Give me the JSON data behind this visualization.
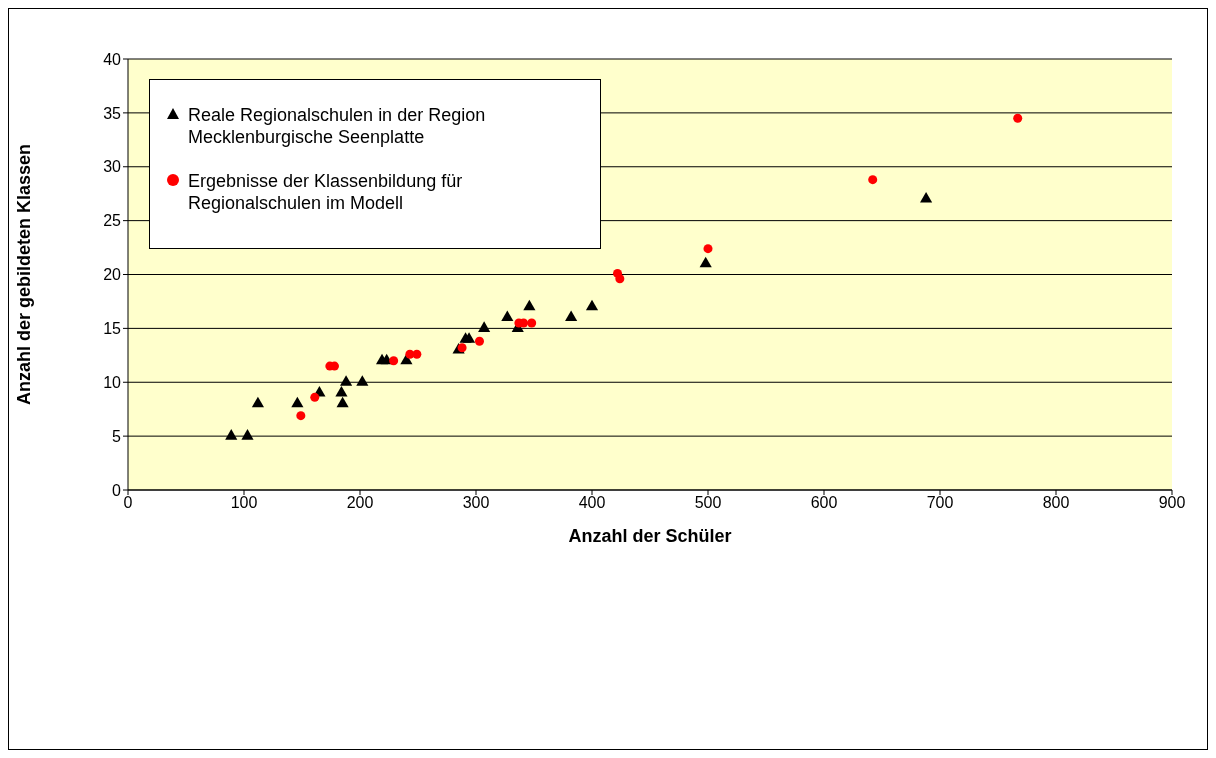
{
  "chart_data": {
    "type": "scatter",
    "xlabel": "Anzahl der Schüler",
    "ylabel": "Anzahl der gebildeten Klassen",
    "xlim": [
      0,
      900
    ],
    "xticks": [
      0,
      100,
      200,
      300,
      400,
      500,
      600,
      700,
      800,
      900
    ],
    "ylim": [
      0,
      40
    ],
    "yticks": [
      0,
      5,
      10,
      15,
      20,
      25,
      30,
      35,
      40
    ],
    "grid": "y",
    "legend": "top left",
    "series": [
      {
        "name": "Reale Regionalschulen in der Region Mecklenburgische Seenplatte",
        "color": "#000000",
        "marker": "triangle",
        "x": [
          89,
          103,
          112,
          146,
          165,
          184,
          185,
          188,
          202,
          219,
          223,
          240,
          285,
          291,
          294,
          307,
          327,
          336,
          346,
          382,
          400,
          498,
          688
        ],
        "values": [
          5,
          5,
          8,
          8,
          9,
          9,
          8,
          10,
          10,
          12,
          12,
          12,
          13,
          14,
          14,
          15,
          16,
          15,
          17,
          16,
          17,
          21,
          27
        ]
      },
      {
        "name": "Ergebnisse der Klassenbildung für Regionalschulen im Modell",
        "color": "#ff0000",
        "marker": "circle",
        "x": [
          149,
          161,
          174,
          178,
          229,
          243,
          249,
          288,
          303,
          337,
          341,
          348,
          422,
          424,
          500,
          642,
          767
        ],
        "values": [
          6.9,
          8.6,
          11.5,
          11.5,
          12.0,
          12.6,
          12.6,
          13.2,
          13.8,
          15.5,
          15.5,
          15.5,
          20.1,
          19.6,
          22.4,
          28.8,
          34.5
        ]
      }
    ]
  }
}
